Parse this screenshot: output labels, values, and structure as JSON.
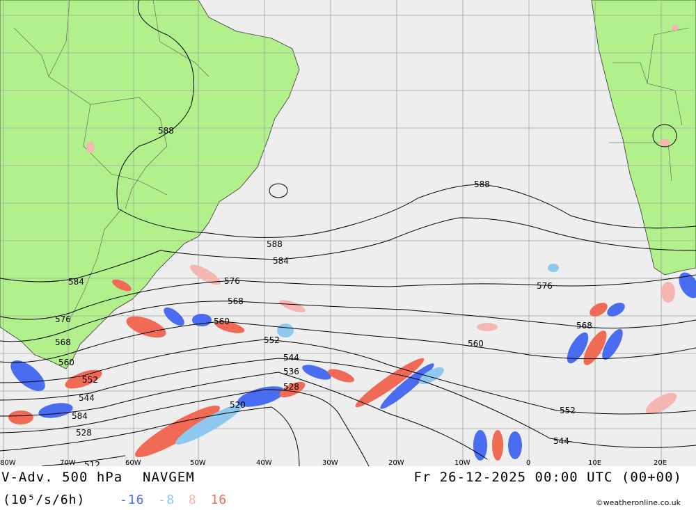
{
  "title": "V-Adv. 500 hPa",
  "model": "NAVGEM",
  "valid_time": "Fr 26-12-2025 00:00 UTC (00+00)",
  "units": "(10⁵/s/6h)",
  "legend": [
    {
      "value": "-16",
      "color": "#4a6cf0"
    },
    {
      "value": "-8",
      "color": "#8fc8ef"
    },
    {
      "value": "8",
      "color": "#f5b5b0"
    },
    {
      "value": "16",
      "color": "#f06a55"
    }
  ],
  "credit": "©weatheronline.co.uk",
  "longitude_ticks": [
    "80W",
    "70W",
    "60W",
    "50W",
    "40W",
    "30W",
    "20W",
    "10W",
    "0",
    "10E",
    "20E"
  ],
  "contour_labels": [
    "588",
    "588",
    "584",
    "584",
    "576",
    "576",
    "568",
    "568",
    "560",
    "560",
    "552",
    "552",
    "544",
    "544",
    "536",
    "528",
    "528",
    "520",
    "512",
    "588",
    "584",
    "576",
    "568",
    "560",
    "552",
    "544"
  ],
  "colors": {
    "land": "#b2f08c",
    "ocean": "#eeeeee",
    "grid": "#a0a0a0",
    "neg_strong": "#4a6cf0",
    "neg_weak": "#8fc8ef",
    "pos_weak": "#f5b5b0",
    "pos_strong": "#f06a55"
  }
}
